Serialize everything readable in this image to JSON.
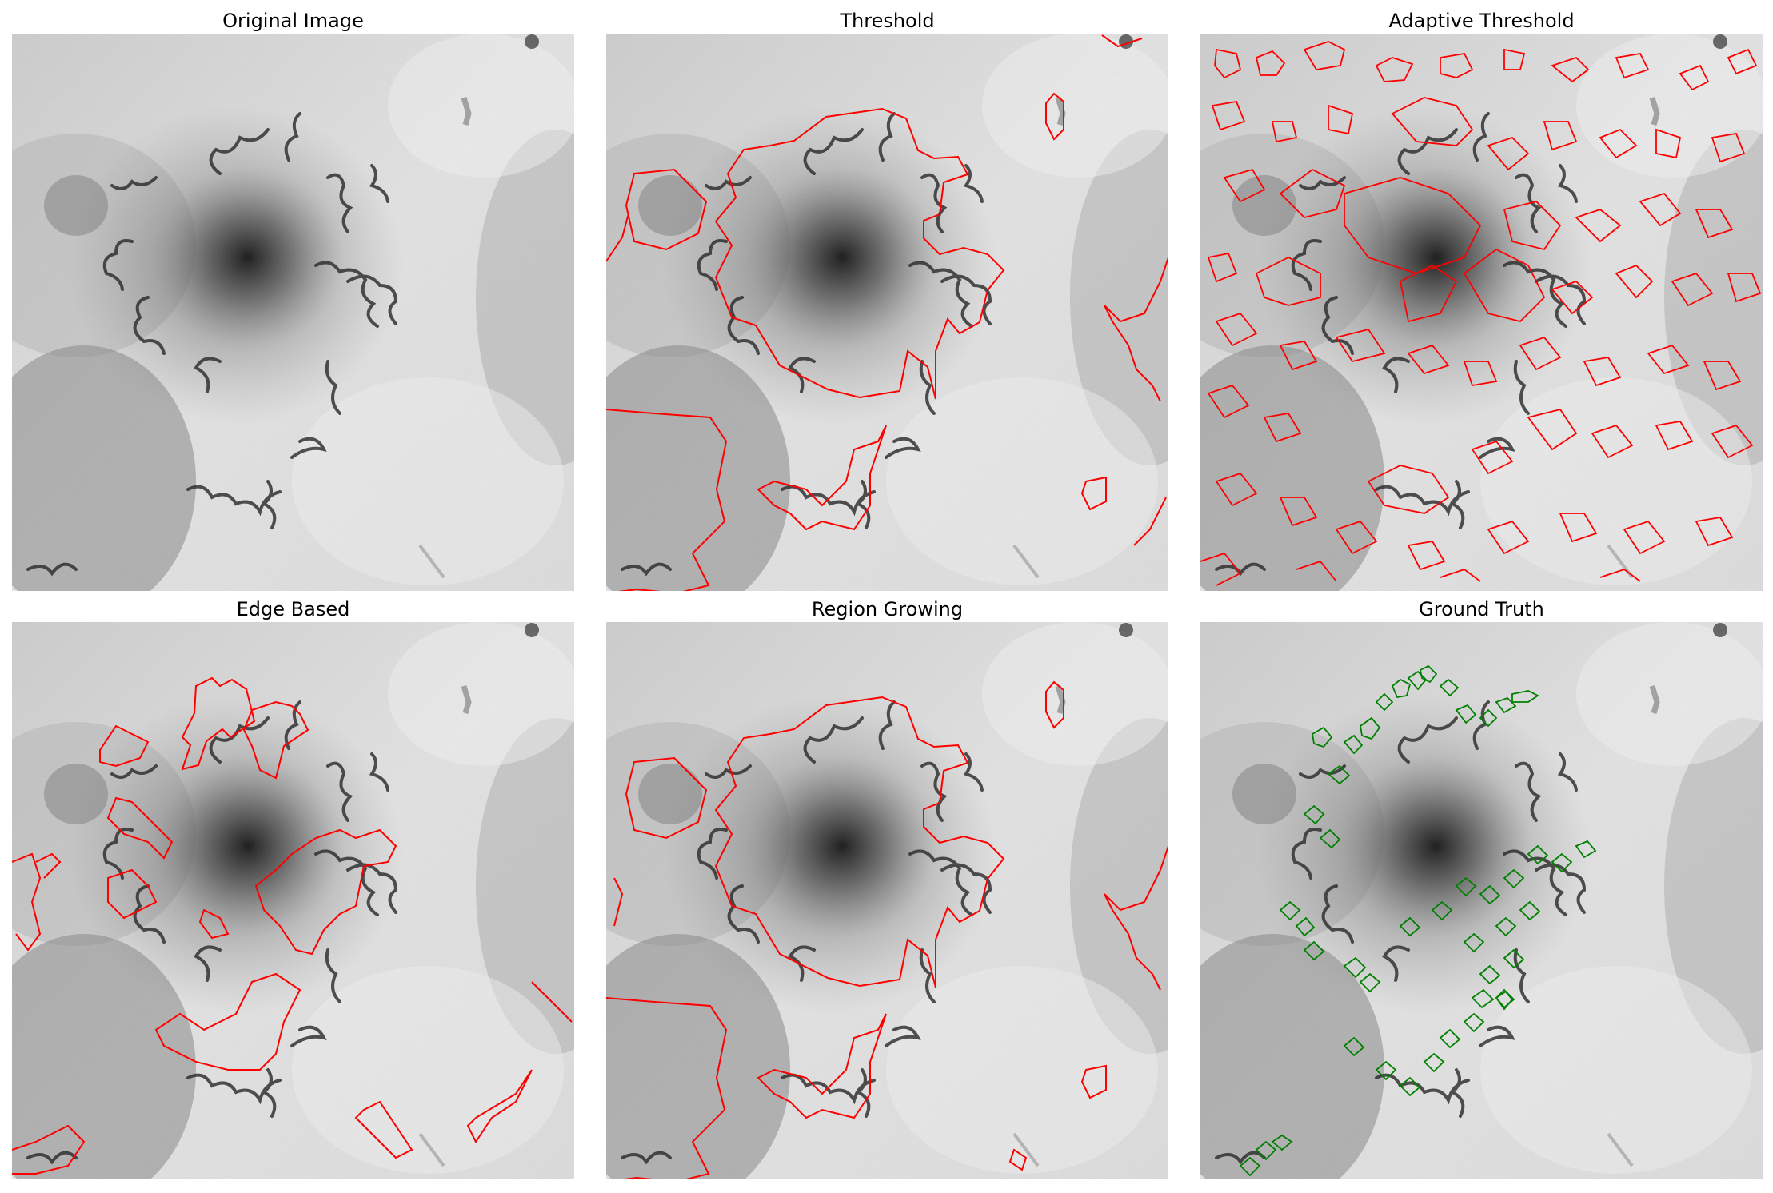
{
  "panels": [
    {
      "title": "Original Image",
      "overlay": "none"
    },
    {
      "title": "Threshold",
      "overlay": "red"
    },
    {
      "title": "Adaptive Threshold",
      "overlay": "red"
    },
    {
      "title": "Edge Based",
      "overlay": "red"
    },
    {
      "title": "Region Growing",
      "overlay": "red"
    },
    {
      "title": "Ground Truth",
      "overlay": "green"
    }
  ],
  "colors": {
    "segmentation_contour": "#ff0000",
    "ground_truth_contour": "#008000",
    "background": "#ffffff"
  }
}
